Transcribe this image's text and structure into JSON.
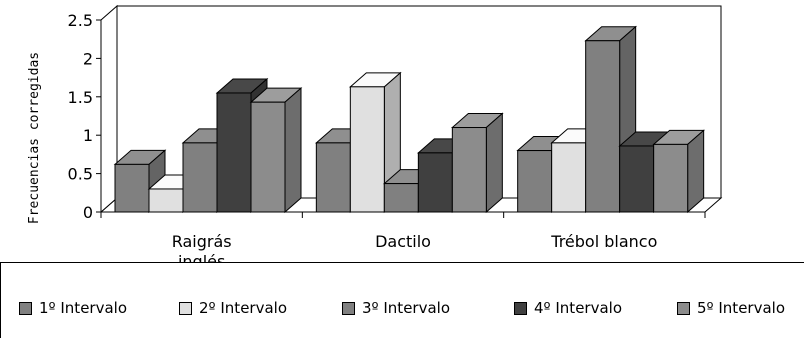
{
  "chart_data": {
    "type": "bar",
    "subtype": "3d-clustered",
    "title": "",
    "xlabel": "",
    "ylabel": "Frecuencias corregidas",
    "ylim": [
      0,
      2.5
    ],
    "yticks": [
      "0",
      "0.5",
      "1",
      "1.5",
      "2",
      "2.5"
    ],
    "categories": [
      "Raigrás inglés",
      "Dactilo",
      "Trébol blanco"
    ],
    "category_lines": [
      [
        "Raigrás",
        "inglés"
      ],
      [
        "Dactilo"
      ],
      [
        "Trébol blanco"
      ]
    ],
    "series": [
      {
        "name": "1º Intervalo",
        "color": "#808080",
        "values": [
          0.62,
          0.9,
          0.8
        ]
      },
      {
        "name": "2º Intervalo",
        "color": "#e0e0e0",
        "values": [
          0.3,
          1.63,
          0.9
        ]
      },
      {
        "name": "3º Intervalo",
        "color": "#808080",
        "values": [
          0.9,
          0.37,
          2.23
        ]
      },
      {
        "name": "4º Intervalo",
        "color": "#404040",
        "values": [
          1.55,
          0.77,
          0.86
        ]
      },
      {
        "name": "5º Intervalo",
        "color": "#8c8c8c",
        "values": [
          1.43,
          1.1,
          0.88
        ]
      }
    ],
    "grid": false,
    "legend_position": "bottom"
  }
}
